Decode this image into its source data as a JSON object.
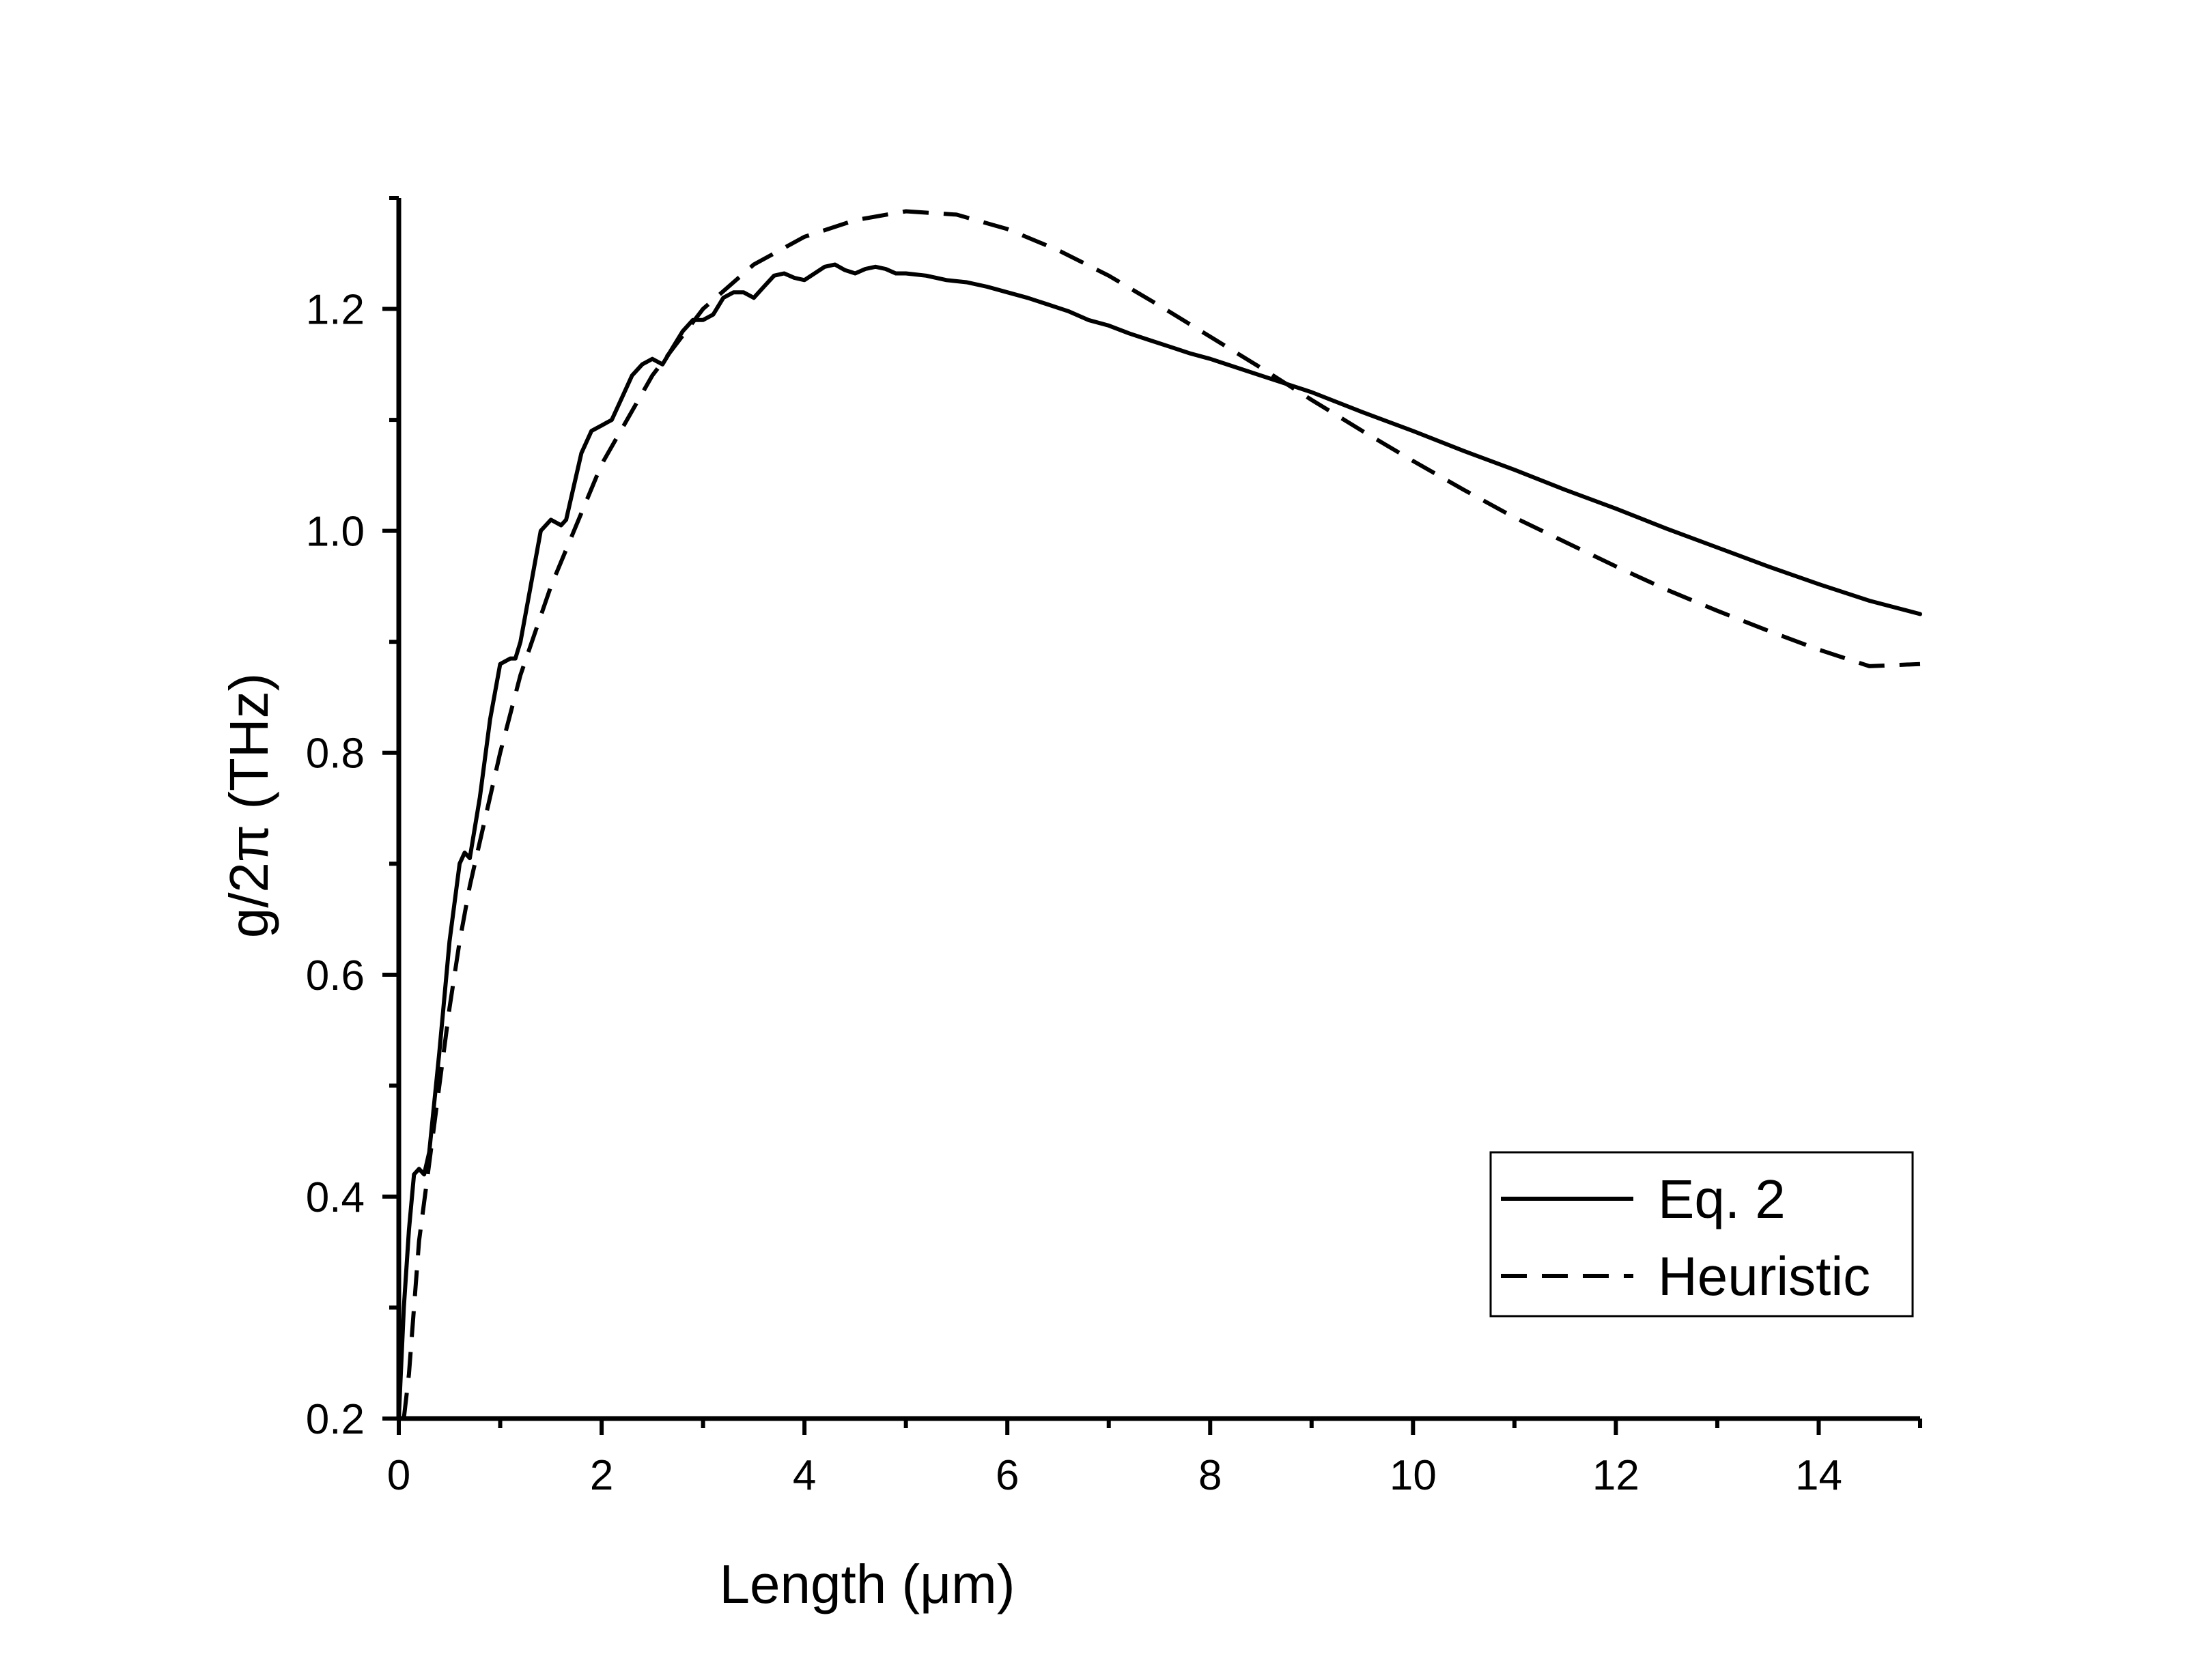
{
  "chart_data": {
    "type": "line",
    "xlabel": "Length (μm)",
    "ylabel": "g/2π (THz)",
    "xlim": [
      0,
      15
    ],
    "ylim": [
      0.2,
      1.3
    ],
    "xticks": [
      "0",
      "2",
      "4",
      "6",
      "8",
      "10",
      "12",
      "14"
    ],
    "yticks": [
      "0.2",
      "0.4",
      "0.6",
      "0.8",
      "1.0",
      "1.2"
    ],
    "legend_position": "bottom-right",
    "grid": false,
    "series": [
      {
        "name": "Eq. 2",
        "style": "solid",
        "x": [
          0.0,
          0.05,
          0.1,
          0.15,
          0.2,
          0.25,
          0.3,
          0.4,
          0.5,
          0.6,
          0.65,
          0.7,
          0.8,
          0.9,
          1.0,
          1.1,
          1.15,
          1.2,
          1.3,
          1.4,
          1.5,
          1.6,
          1.65,
          1.7,
          1.8,
          1.9,
          2.0,
          2.1,
          2.2,
          2.3,
          2.4,
          2.5,
          2.6,
          2.7,
          2.8,
          2.9,
          3.0,
          3.1,
          3.2,
          3.3,
          3.4,
          3.5,
          3.6,
          3.7,
          3.8,
          3.9,
          4.0,
          4.1,
          4.2,
          4.3,
          4.4,
          4.5,
          4.6,
          4.7,
          4.8,
          4.9,
          5.0,
          5.2,
          5.4,
          5.6,
          5.8,
          6.0,
          6.2,
          6.4,
          6.6,
          6.8,
          7.0,
          7.2,
          7.4,
          7.6,
          7.8,
          8.0,
          8.5,
          9.0,
          9.5,
          10.0,
          10.5,
          11.0,
          11.5,
          12.0,
          12.5,
          13.0,
          13.5,
          14.0,
          14.5,
          15.0
        ],
        "y": [
          0.2,
          0.3,
          0.37,
          0.42,
          0.425,
          0.42,
          0.44,
          0.53,
          0.63,
          0.7,
          0.71,
          0.705,
          0.76,
          0.83,
          0.88,
          0.885,
          0.885,
          0.9,
          0.95,
          1.0,
          1.01,
          1.005,
          1.01,
          1.03,
          1.07,
          1.09,
          1.095,
          1.1,
          1.12,
          1.14,
          1.15,
          1.155,
          1.15,
          1.165,
          1.18,
          1.19,
          1.19,
          1.195,
          1.21,
          1.215,
          1.215,
          1.21,
          1.22,
          1.23,
          1.232,
          1.228,
          1.226,
          1.232,
          1.238,
          1.24,
          1.235,
          1.232,
          1.236,
          1.238,
          1.236,
          1.232,
          1.232,
          1.23,
          1.226,
          1.224,
          1.22,
          1.215,
          1.21,
          1.204,
          1.198,
          1.19,
          1.185,
          1.178,
          1.172,
          1.166,
          1.16,
          1.155,
          1.14,
          1.125,
          1.107,
          1.09,
          1.072,
          1.055,
          1.037,
          1.02,
          1.002,
          0.985,
          0.968,
          0.952,
          0.937,
          0.925
        ]
      },
      {
        "name": "Heuristic",
        "style": "dashed",
        "x": [
          0.05,
          0.1,
          0.15,
          0.2,
          0.3,
          0.4,
          0.5,
          0.6,
          0.7,
          0.8,
          1.0,
          1.2,
          1.5,
          2.0,
          2.5,
          3.0,
          3.5,
          4.0,
          4.5,
          5.0,
          5.5,
          6.0,
          6.5,
          7.0,
          7.5,
          8.0,
          8.5,
          9.0,
          9.5,
          10.0,
          10.5,
          11.0,
          11.5,
          12.0,
          12.5,
          13.0,
          13.5,
          14.0,
          14.5,
          15.0
        ],
        "y": [
          0.2,
          0.24,
          0.3,
          0.36,
          0.43,
          0.5,
          0.57,
          0.63,
          0.68,
          0.72,
          0.8,
          0.87,
          0.95,
          1.06,
          1.14,
          1.2,
          1.24,
          1.265,
          1.28,
          1.288,
          1.285,
          1.272,
          1.253,
          1.23,
          1.203,
          1.175,
          1.147,
          1.118,
          1.09,
          1.063,
          1.037,
          1.012,
          0.99,
          0.968,
          0.947,
          0.928,
          0.91,
          0.893,
          0.878,
          0.88
        ]
      }
    ]
  }
}
